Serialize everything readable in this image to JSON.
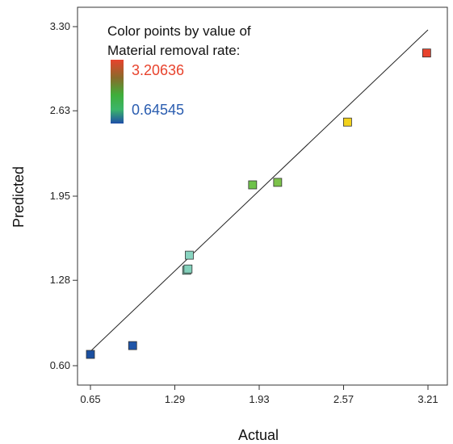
{
  "chart_data": {
    "type": "scatter",
    "xlabel": "Actual",
    "ylabel": "Predicted",
    "xlim": [
      0.65,
      3.21
    ],
    "ylim": [
      0.6,
      3.3
    ],
    "x_ticks": [
      0.65,
      1.29,
      1.93,
      2.57,
      3.21
    ],
    "x_tick_labels": [
      "0.65",
      "1.29",
      "1.93",
      "2.57",
      "3.21"
    ],
    "y_ticks": [
      0.6,
      1.28,
      1.95,
      2.63,
      3.3
    ],
    "y_tick_labels": [
      "0.60",
      "1.28",
      "1.95",
      "2.63",
      "3.30"
    ],
    "fit_line": {
      "x": [
        0.65,
        3.21
      ],
      "y": [
        0.65,
        3.21
      ]
    },
    "legend": {
      "title_line1": "Color points by value of",
      "title_line2": "Material removal rate:",
      "max_label": "3.20636",
      "min_label": "0.64545",
      "max_color": "#e8432d",
      "min_color": "#2a5db0",
      "placement": "top-left"
    },
    "points": [
      {
        "x": 0.65,
        "y": 0.69,
        "color": "#1a4fa0"
      },
      {
        "x": 0.97,
        "y": 0.76,
        "color": "#1f55a8"
      },
      {
        "x": 1.38,
        "y": 1.36,
        "color": "#7fcfb8"
      },
      {
        "x": 1.39,
        "y": 1.37,
        "color": "#82d1bb"
      },
      {
        "x": 1.4,
        "y": 1.48,
        "color": "#88d4c0"
      },
      {
        "x": 1.88,
        "y": 2.04,
        "color": "#6ec24a"
      },
      {
        "x": 2.07,
        "y": 2.06,
        "color": "#7cc24a"
      },
      {
        "x": 2.6,
        "y": 2.54,
        "color": "#f2d21b"
      },
      {
        "x": 3.2,
        "y": 3.09,
        "color": "#e8432d"
      }
    ]
  }
}
